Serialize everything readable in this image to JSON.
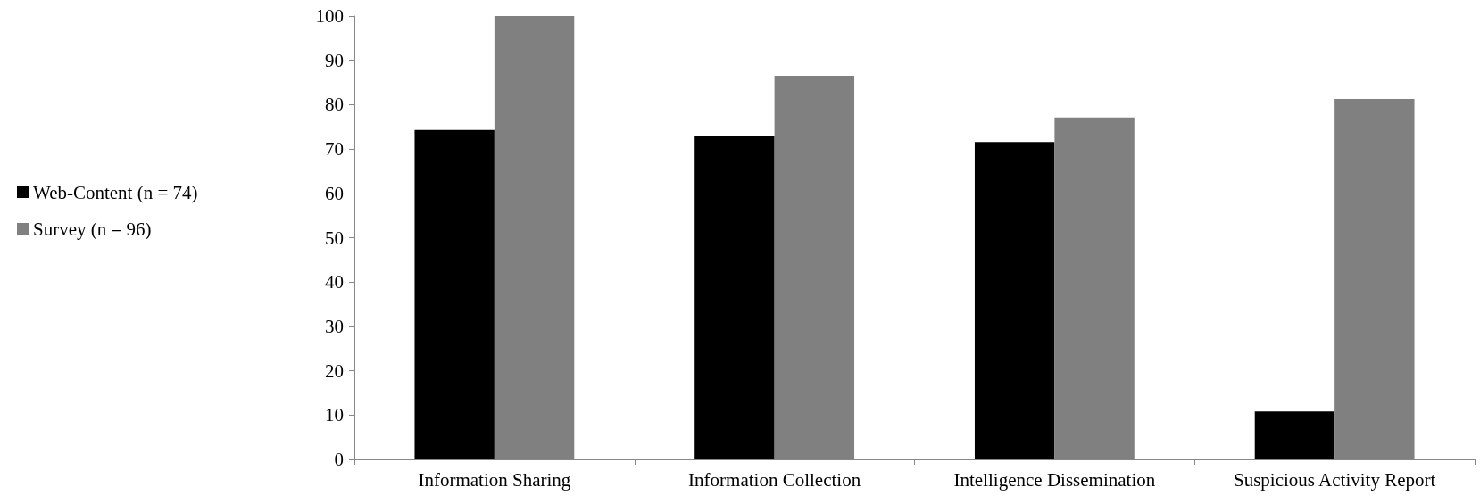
{
  "chart_data": {
    "type": "bar",
    "categories": [
      "Information Sharing",
      "Information Collection",
      "Intelligence Dissemination",
      "Suspicious Activity Report"
    ],
    "series": [
      {
        "name": "Web-Content (n = 74)",
        "color": "#000000",
        "values": [
          74.3,
          73.0,
          71.6,
          10.8
        ]
      },
      {
        "name": "Survey (n = 96)",
        "color": "#808080",
        "values": [
          100,
          86.5,
          77.1,
          81.3
        ]
      }
    ],
    "ylim": [
      0,
      100
    ],
    "yticks": [
      0,
      10,
      20,
      30,
      40,
      50,
      60,
      70,
      80,
      90,
      100
    ],
    "grid": false,
    "legend": "left"
  }
}
